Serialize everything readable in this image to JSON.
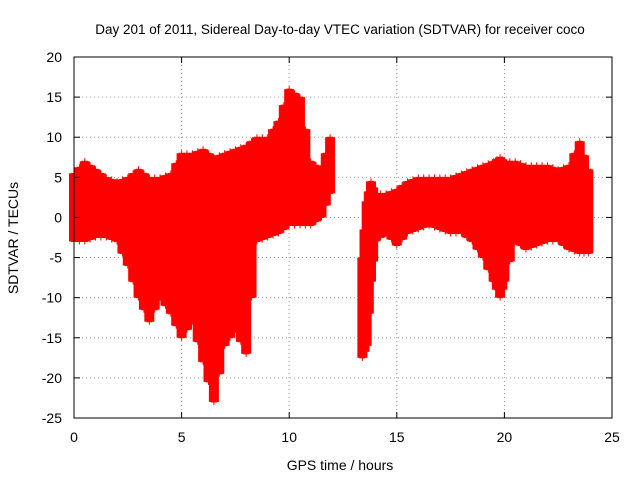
{
  "chart_data": {
    "type": "scatter",
    "title": "Day 201 of 2011, Sidereal Day-to-day VTEC variation (SDTVAR) for receiver coco",
    "xlabel": "GPS time / hours",
    "ylabel": "SDTVAR / TECUs",
    "xlim": [
      0,
      25
    ],
    "ylim": [
      -25,
      20
    ],
    "xticks": [
      0,
      5,
      10,
      15,
      20,
      25
    ],
    "yticks": [
      -25,
      -20,
      -15,
      -10,
      -5,
      0,
      5,
      10,
      15,
      20
    ],
    "xtick_labels": [
      "0",
      "5",
      "10",
      "15",
      "20",
      "25"
    ],
    "ytick_labels": [
      "-25",
      "-20",
      "-15",
      "-10",
      "-5",
      "0",
      "5",
      "10",
      "15",
      "20"
    ],
    "grid": true,
    "legend": "none",
    "marker": "plus",
    "color": "#ff0000",
    "series": [
      {
        "name": "SDTVAR",
        "x": [
          0.0,
          0.5,
          1.0,
          1.5,
          2.0,
          2.5,
          3.0,
          3.5,
          4.0,
          4.5,
          5.0,
          5.5,
          6.0,
          6.5,
          7.0,
          7.5,
          8.0,
          8.5,
          9.0,
          9.5,
          10.0,
          10.5,
          11.0,
          11.5,
          11.9,
          13.4,
          13.6,
          13.8,
          14.0,
          14.5,
          15.0,
          15.5,
          16.0,
          16.5,
          17.0,
          17.5,
          18.0,
          18.5,
          19.0,
          19.5,
          19.8,
          20.0,
          20.5,
          21.0,
          21.5,
          22.0,
          22.5,
          23.0,
          23.5,
          23.9
        ],
        "upper": [
          5.5,
          7.0,
          6.0,
          5.0,
          4.5,
          5.0,
          6.0,
          5.0,
          5.0,
          5.5,
          8.0,
          8.0,
          8.5,
          7.5,
          8.0,
          8.5,
          9.0,
          10.0,
          10.0,
          12.0,
          16.0,
          15.0,
          7.0,
          6.0,
          10.0,
          -5.0,
          2.0,
          4.5,
          3.0,
          3.0,
          3.5,
          4.5,
          5.0,
          5.0,
          5.0,
          5.0,
          5.5,
          6.0,
          6.5,
          7.0,
          7.5,
          7.0,
          7.0,
          6.5,
          6.5,
          6.5,
          6.0,
          6.5,
          9.5,
          6.0
        ],
        "lower": [
          -3.0,
          -3.0,
          -2.5,
          -2.5,
          -3.0,
          -6.0,
          -10.0,
          -13.0,
          -10.0,
          -12.0,
          -15.0,
          -13.0,
          -18.0,
          -23.0,
          -16.0,
          -14.0,
          -17.0,
          -3.0,
          -2.5,
          -2.0,
          -1.0,
          -1.0,
          -1.0,
          0.0,
          3.0,
          -17.5,
          -16.0,
          -8.0,
          -3.0,
          -2.0,
          -3.5,
          -2.0,
          -1.5,
          -1.0,
          -1.5,
          -2.0,
          -2.0,
          -3.0,
          -5.0,
          -8.0,
          -10.0,
          -8.0,
          -3.0,
          -4.0,
          -3.5,
          -3.0,
          -3.0,
          -4.0,
          -4.5,
          -4.5
        ]
      }
    ]
  }
}
